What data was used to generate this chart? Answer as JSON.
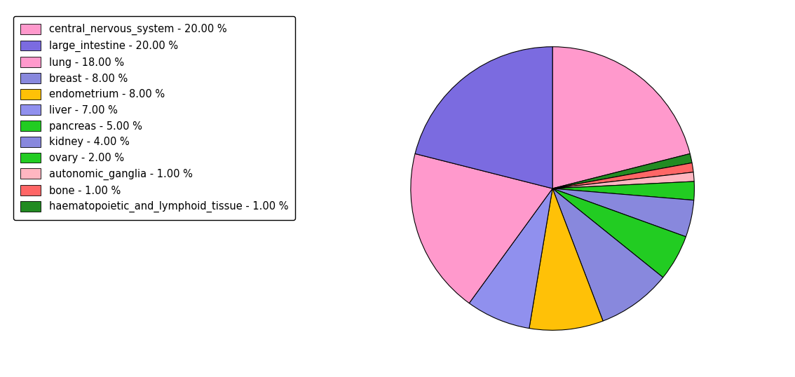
{
  "labels": [
    "central_nervous_system - 20.00 %",
    "large_intestine - 20.00 %",
    "lung - 18.00 %",
    "breast - 8.00 %",
    "endometrium - 8.00 %",
    "liver - 7.00 %",
    "pancreas - 5.00 %",
    "kidney - 4.00 %",
    "ovary - 2.00 %",
    "autonomic_ganglia - 1.00 %",
    "bone - 1.00 %",
    "haematopoietic_and_lymphoid_tissue - 1.00 %"
  ],
  "values": [
    20,
    20,
    18,
    8,
    8,
    7,
    5,
    4,
    2,
    1,
    1,
    1
  ],
  "colors": [
    "#FF99CC",
    "#7B6BE0",
    "#FF99CC",
    "#8888DD",
    "#FFC107",
    "#9090EE",
    "#22CC22",
    "#8888DD",
    "#22CC22",
    "#FFB6C1",
    "#FF6666",
    "#228B22"
  ],
  "pie_order_values": [
    20,
    1,
    1,
    1,
    2,
    4,
    5,
    8,
    8,
    7,
    18,
    20
  ],
  "pie_order_colors": [
    "#FF99CC",
    "#228B22",
    "#FF6666",
    "#FFB6C1",
    "#22CC22",
    "#8888DD",
    "#22CC22",
    "#8888DD",
    "#FFC107",
    "#9090EE",
    "#FF99CC",
    "#7B6BE0"
  ],
  "startangle": 90,
  "figsize": [
    11.34,
    5.38
  ],
  "dpi": 100
}
